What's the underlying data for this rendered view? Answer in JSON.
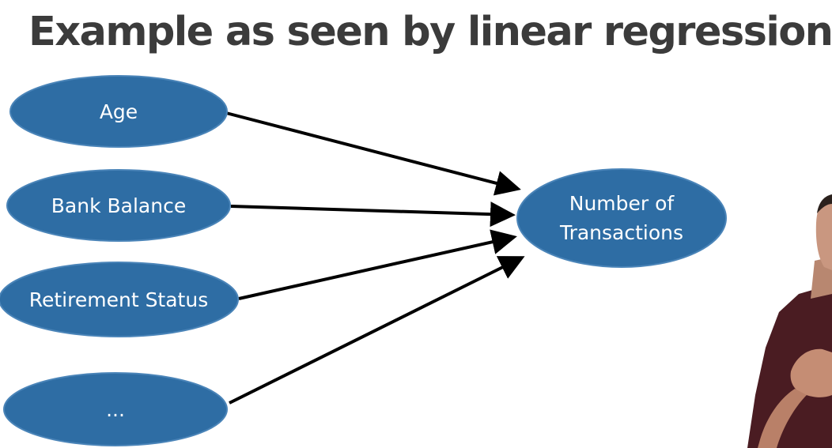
{
  "slide": {
    "title": "Example as seen by linear regression"
  },
  "diagram": {
    "node_color": "#2e6da4",
    "node_border_color": "#4a84b8",
    "arrow_color": "#000000",
    "inputs": [
      {
        "label": "Age"
      },
      {
        "label": "Bank Balance"
      },
      {
        "label": "Retirement Status"
      },
      {
        "label": "..."
      }
    ],
    "output": {
      "label_line1": "Number of",
      "label_line2": "Transactions"
    }
  }
}
